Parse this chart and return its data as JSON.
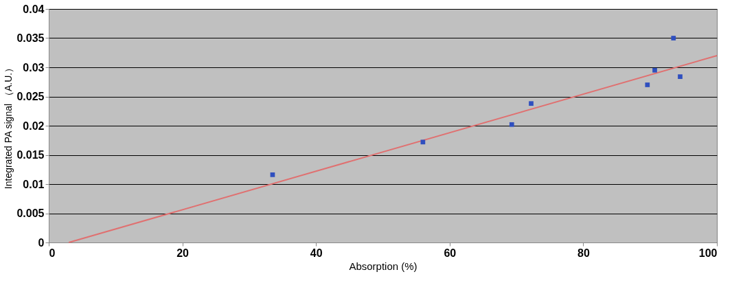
{
  "chart_data": {
    "type": "scatter",
    "xlabel": "Absorption (%)",
    "ylabel": "Integrated PA signal （A.U.）",
    "xlim": [
      0,
      100
    ],
    "xticks": [
      0,
      20,
      40,
      60,
      80,
      100
    ],
    "ylim": [
      0,
      0.04
    ],
    "yticks": [
      0,
      0.005,
      0.01,
      0.015,
      0.02,
      0.025,
      0.03,
      0.035,
      0.04
    ],
    "grid": "y",
    "series": [
      {
        "color": "#2f4fbf",
        "marker": "square",
        "x": [
          33.5,
          56.0,
          69.3,
          72.2,
          89.6,
          90.7,
          93.5,
          94.5
        ],
        "values": [
          0.0116,
          0.0172,
          0.0202,
          0.0238,
          0.027,
          0.0295,
          0.035,
          0.0284
        ]
      },
      {
        "type": "line",
        "marker": "none",
        "color": "#e07070",
        "x": [
          3,
          100
        ],
        "values": [
          0,
          0.032
        ]
      }
    ]
  }
}
